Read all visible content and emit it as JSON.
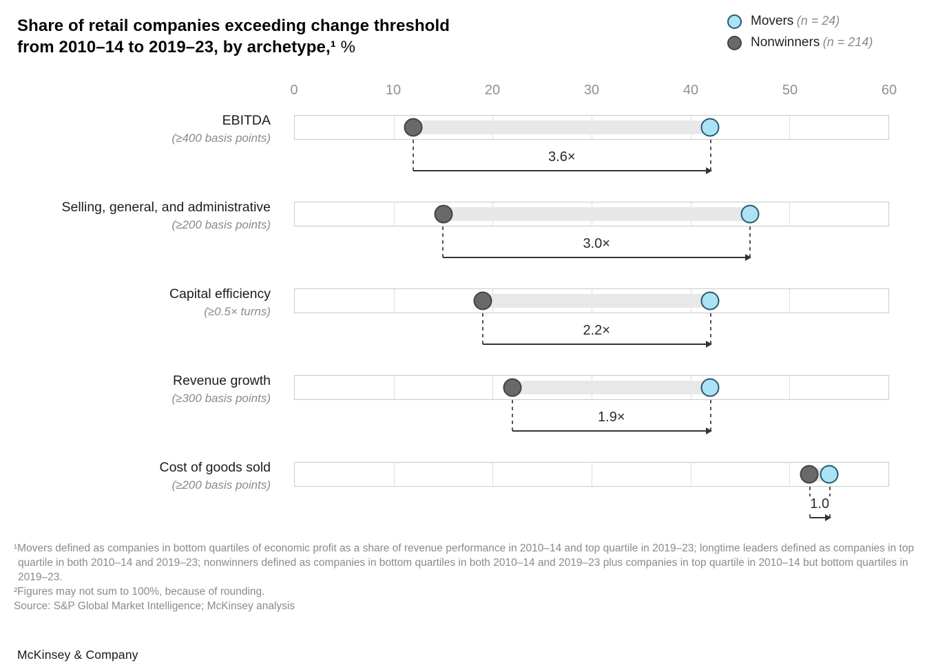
{
  "title": {
    "line1": "Share of retail companies exceeding change threshold",
    "line2": "from 2010–14 to 2019–23, by archetype,¹",
    "suffix": " %"
  },
  "legend": {
    "movers_label": "Movers",
    "movers_n": "(n = 24)",
    "nonwinners_label": "Nonwinners",
    "nonwinners_n": "(n = 214)"
  },
  "colors": {
    "movers_fill": "#abe3f4",
    "movers_border": "#24586f",
    "nonwinners_fill": "#696969",
    "nonwinners_border": "#424242",
    "band": "#e8e8e8",
    "axis_text": "#909090"
  },
  "chart_data": {
    "type": "dumbbell",
    "title": "Share of retail companies exceeding change threshold from 2010–14 to 2019–23, by archetype, %",
    "x_axis": {
      "min": 0,
      "max": 60,
      "ticks": [
        0,
        10,
        20,
        30,
        40,
        50,
        60
      ]
    },
    "series": [
      "Movers",
      "Nonwinners"
    ],
    "rows": [
      {
        "label": "EBITDA",
        "sublabel": "(≥400 basis points)",
        "nonwinners": 12,
        "movers": 42,
        "multiplier": "3.6×"
      },
      {
        "label": "Selling, general, and administrative",
        "sublabel": "(≥200 basis points)",
        "nonwinners": 15,
        "movers": 46,
        "multiplier": "3.0×"
      },
      {
        "label": "Capital efficiency",
        "sublabel": "(≥0.5× turns)",
        "nonwinners": 19,
        "movers": 42,
        "multiplier": "2.2×"
      },
      {
        "label": "Revenue growth",
        "sublabel": "(≥300 basis points)",
        "nonwinners": 22,
        "movers": 42,
        "multiplier": "1.9×"
      },
      {
        "label": "Cost of goods sold",
        "sublabel": "(≥200 basis points)",
        "nonwinners": 52,
        "movers": 54,
        "multiplier": "1.0"
      }
    ],
    "legend_position": "top-right",
    "grid": true
  },
  "footnotes": {
    "note1": "¹Movers defined as companies in bottom quartiles of economic profit as a share of revenue performance in 2010–14 and top quartile in 2019–23; longtime leaders defined as companies in top quartile in both 2010–14 and 2019–23; nonwinners defined as companies in bottom quartiles in both 2010–14 and 2019–23 plus companies in top quartile in 2010–14 but bottom quartiles in 2019–23.",
    "note2": "²Figures may not sum to 100%, because of rounding.",
    "source": "Source: S&P Global Market Intelligence; McKinsey analysis"
  },
  "footer": "McKinsey & Company"
}
